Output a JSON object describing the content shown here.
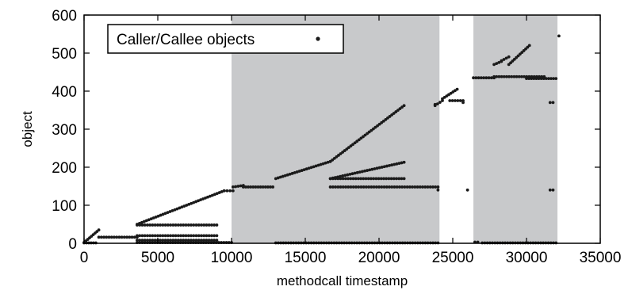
{
  "chart_data": {
    "type": "scatter",
    "xlabel": "methodcall timestamp",
    "ylabel": "object",
    "xlim": [
      0,
      35000
    ],
    "ylim": [
      0,
      600
    ],
    "x_ticks": [
      0,
      5000,
      10000,
      15000,
      20000,
      25000,
      30000,
      35000
    ],
    "y_ticks": [
      0,
      100,
      200,
      300,
      400,
      500,
      600
    ],
    "grid": false,
    "legend": {
      "position": "top-left",
      "entries": [
        {
          "label": "Caller/Callee objects",
          "marker": "dot"
        }
      ]
    },
    "shaded_regions": [
      {
        "x_start": 10000,
        "x_end": 24100
      },
      {
        "x_start": 26400,
        "x_end": 32100
      }
    ],
    "colors": {
      "shade": "#c8c9cb",
      "points": "#1a1a1a",
      "frame": "#000000"
    },
    "series": [
      {
        "marker": "dot",
        "segments": [
          {
            "x": [
              0,
              1000
            ],
            "y": [
              2,
              35
            ]
          },
          {
            "x": [
              0,
              800
            ],
            "y": [
              1,
              1
            ]
          },
          {
            "x": [
              1000,
              3600
            ],
            "y": [
              16,
              16
            ]
          },
          {
            "x": [
              3600,
              9500
            ],
            "y": [
              50,
              138
            ]
          },
          {
            "x": [
              3600,
              9000
            ],
            "y": [
              48,
              48
            ]
          },
          {
            "x": [
              3600,
              9000
            ],
            "y": [
              20,
              20
            ]
          },
          {
            "x": [
              3600,
              9000
            ],
            "y": [
              8,
              8
            ]
          },
          {
            "x": [
              3600,
              10000
            ],
            "y": [
              2,
              2
            ]
          },
          {
            "x": [
              9500,
              10100
            ],
            "y": [
              138,
              138
            ]
          },
          {
            "x": [
              10100,
              10800
            ],
            "y": [
              148,
              152
            ]
          },
          {
            "x": [
              10800,
              12800
            ],
            "y": [
              148,
              148
            ]
          },
          {
            "x": [
              13000,
              16700
            ],
            "y": [
              170,
              215
            ]
          },
          {
            "x": [
              16700,
              21700
            ],
            "y": [
              215,
              362
            ]
          },
          {
            "x": [
              16700,
              21700
            ],
            "y": [
              170,
              213
            ]
          },
          {
            "x": [
              16700,
              21700
            ],
            "y": [
              170,
              170
            ]
          },
          {
            "x": [
              16700,
              24000
            ],
            "y": [
              148,
              148
            ]
          },
          {
            "x": [
              13000,
              24000
            ],
            "y": [
              1,
              1
            ]
          },
          {
            "x": [
              23800,
              24300
            ],
            "y": [
              362,
              375
            ]
          },
          {
            "x": [
              24300,
              25300
            ],
            "y": [
              380,
              405
            ]
          },
          {
            "x": [
              24800,
              25700
            ],
            "y": [
              375,
              375
            ]
          },
          {
            "x": [
              26400,
              27800
            ],
            "y": [
              435,
              435
            ]
          },
          {
            "x": [
              27800,
              28300
            ],
            "y": [
              470,
              478
            ]
          },
          {
            "x": [
              28300,
              28800
            ],
            "y": [
              480,
              490
            ]
          },
          {
            "x": [
              28800,
              30200
            ],
            "y": [
              470,
              520
            ]
          },
          {
            "x": [
              27800,
              31200
            ],
            "y": [
              438,
              438
            ]
          },
          {
            "x": [
              30000,
              32000
            ],
            "y": [
              433,
              433
            ]
          },
          {
            "x": [
              27000,
              32000
            ],
            "y": [
              1,
              1
            ]
          }
        ],
        "points": [
          {
            "x": 24000,
            "y": 140
          },
          {
            "x": 23800,
            "y": 365
          },
          {
            "x": 25700,
            "y": 370
          },
          {
            "x": 26000,
            "y": 140
          },
          {
            "x": 31600,
            "y": 140
          },
          {
            "x": 31800,
            "y": 140
          },
          {
            "x": 31600,
            "y": 370
          },
          {
            "x": 31800,
            "y": 370
          },
          {
            "x": 32200,
            "y": 545
          },
          {
            "x": 26500,
            "y": 3
          },
          {
            "x": 26700,
            "y": 3
          }
        ]
      }
    ]
  }
}
